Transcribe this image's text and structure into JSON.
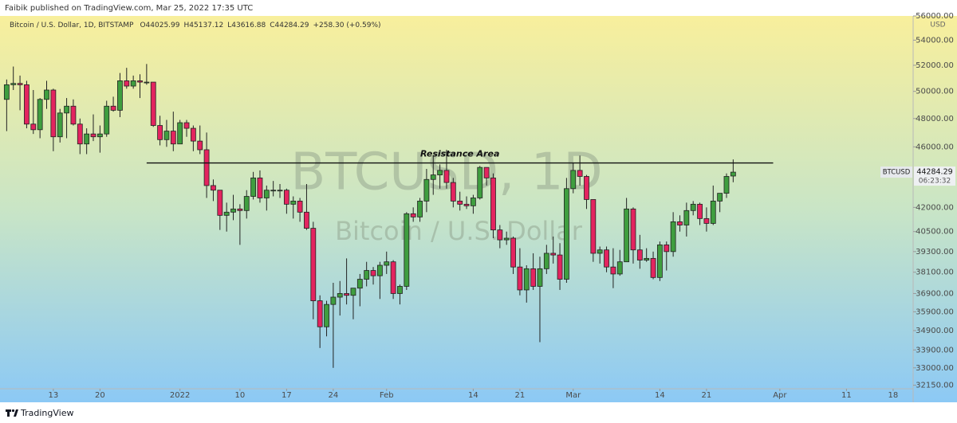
{
  "header": "Faibik published on TradingView.com, Mar 25, 2022 17:35 UTC",
  "footer": {
    "brand": "TradingView"
  },
  "chart_data": {
    "type": "candlestick",
    "symbol_line": "Bitcoin / U.S. Dollar, 1D, BITSTAMP",
    "ohlc_prefixes": [
      "O",
      "H",
      "L",
      "C"
    ],
    "change_label": "+258.30 (+0.59%)",
    "watermark": [
      "BTCUSD, 1D",
      "Bitcoin / U.S. Dollar"
    ],
    "currency": "USD",
    "price_tag_symbol": "BTCUSD",
    "countdown": "06:23:32",
    "up_color": "#3f9e3f",
    "down_color": "#e3245f",
    "log_scale": true,
    "grid": false,
    "x": [
      "2021-12-06",
      "2021-12-07",
      "2021-12-08",
      "2021-12-09",
      "2021-12-10",
      "2021-12-11",
      "2021-12-12",
      "2021-12-13",
      "2021-12-14",
      "2021-12-15",
      "2021-12-16",
      "2021-12-17",
      "2021-12-18",
      "2021-12-19",
      "2021-12-20",
      "2021-12-21",
      "2021-12-22",
      "2021-12-23",
      "2021-12-24",
      "2021-12-25",
      "2021-12-26",
      "2021-12-27",
      "2021-12-28",
      "2021-12-29",
      "2021-12-30",
      "2021-12-31",
      "2022-01-01",
      "2022-01-02",
      "2022-01-03",
      "2022-01-04",
      "2022-01-05",
      "2022-01-06",
      "2022-01-07",
      "2022-01-08",
      "2022-01-09",
      "2022-01-10",
      "2022-01-11",
      "2022-01-12",
      "2022-01-13",
      "2022-01-14",
      "2022-01-15",
      "2022-01-16",
      "2022-01-17",
      "2022-01-18",
      "2022-01-19",
      "2022-01-20",
      "2022-01-21",
      "2022-01-22",
      "2022-01-23",
      "2022-01-24",
      "2022-01-25",
      "2022-01-26",
      "2022-01-27",
      "2022-01-28",
      "2022-01-29",
      "2022-01-30",
      "2022-01-31",
      "2022-02-01",
      "2022-02-02",
      "2022-02-03",
      "2022-02-04",
      "2022-02-05",
      "2022-02-06",
      "2022-02-07",
      "2022-02-08",
      "2022-02-09",
      "2022-02-10",
      "2022-02-11",
      "2022-02-12",
      "2022-02-13",
      "2022-02-14",
      "2022-02-15",
      "2022-02-16",
      "2022-02-17",
      "2022-02-18",
      "2022-02-19",
      "2022-02-20",
      "2022-02-21",
      "2022-02-22",
      "2022-02-23",
      "2022-02-24",
      "2022-02-25",
      "2022-02-26",
      "2022-02-27",
      "2022-02-28",
      "2022-03-01",
      "2022-03-02",
      "2022-03-03",
      "2022-03-04",
      "2022-03-05",
      "2022-03-06",
      "2022-03-07",
      "2022-03-08",
      "2022-03-09",
      "2022-03-10",
      "2022-03-11",
      "2022-03-12",
      "2022-03-13",
      "2022-03-14",
      "2022-03-15",
      "2022-03-16",
      "2022-03-17",
      "2022-03-18",
      "2022-03-19",
      "2022-03-20",
      "2022-03-21",
      "2022-03-22",
      "2022-03-23",
      "2022-03-24",
      "2022-03-25"
    ],
    "open": [
      49400,
      50500,
      50600,
      50500,
      47600,
      47200,
      49400,
      50100,
      46700,
      48400,
      48900,
      47600,
      46200,
      46900,
      46700,
      46900,
      48900,
      48600,
      50800,
      50400,
      50800,
      50700,
      50700,
      47500,
      46500,
      47100,
      46200,
      47700,
      47300,
      46400,
      45800,
      43400,
      43100,
      41500,
      41700,
      41900,
      41800,
      42700,
      43900,
      42600,
      43100,
      43100,
      43100,
      42200,
      42400,
      41700,
      40700,
      36500,
      35100,
      36300,
      36700,
      36900,
      36800,
      37200,
      37700,
      38200,
      37900,
      38500,
      38700,
      36900,
      37300,
      41600,
      41400,
      42400,
      43800,
      44100,
      44400,
      43600,
      42400,
      42200,
      42100,
      42600,
      44600,
      43900,
      40600,
      40000,
      40100,
      38400,
      37100,
      38300,
      37300,
      38300,
      39200,
      39100,
      37700,
      43200,
      44400,
      44000,
      42500,
      39200,
      39400,
      38400,
      38000,
      38700,
      41900,
      39400,
      38800,
      38900,
      37800,
      39700,
      39300,
      41100,
      40900,
      41800,
      42200,
      41300,
      41000,
      42400,
      42900,
      44025.99
    ],
    "high": [
      50900,
      51900,
      51200,
      50800,
      50100,
      49500,
      50800,
      50200,
      48700,
      49500,
      49400,
      48000,
      47300,
      48300,
      47500,
      49300,
      49600,
      51400,
      51800,
      51200,
      51300,
      52100,
      50700,
      48200,
      47900,
      48500,
      47900,
      47900,
      47500,
      47500,
      47000,
      43800,
      43100,
      42300,
      42800,
      42200,
      43100,
      44300,
      44400,
      43400,
      43700,
      43500,
      43200,
      42700,
      42600,
      43500,
      41100,
      36800,
      36500,
      37500,
      37600,
      38900,
      37200,
      38000,
      38700,
      38400,
      38700,
      39300,
      38800,
      37400,
      41700,
      42000,
      42600,
      44500,
      45400,
      44800,
      45800,
      43900,
      43000,
      42700,
      42800,
      44700,
      44600,
      44200,
      40900,
      40500,
      40200,
      39500,
      38500,
      39200,
      39000,
      39700,
      40200,
      39800,
      43900,
      44900,
      45400,
      44100,
      42500,
      39600,
      39600,
      39500,
      39400,
      42600,
      42000,
      40300,
      39500,
      39300,
      39900,
      39900,
      41700,
      41500,
      42300,
      42400,
      42300,
      42000,
      43400,
      42800,
      44200,
      45137.12
    ],
    "low": [
      47100,
      50100,
      48600,
      47300,
      46900,
      46600,
      48700,
      45700,
      46300,
      46600,
      47500,
      45500,
      45500,
      46400,
      45600,
      46700,
      48500,
      48100,
      50200,
      50200,
      49500,
      50500,
      47400,
      46100,
      46000,
      45700,
      46200,
      46700,
      45700,
      45500,
      42600,
      42400,
      40600,
      40500,
      41200,
      39700,
      41300,
      42500,
      42300,
      41800,
      42700,
      42600,
      41600,
      41300,
      41100,
      40600,
      35500,
      34000,
      34600,
      33000,
      35700,
      36300,
      35500,
      36200,
      37300,
      37400,
      36600,
      38000,
      36600,
      36300,
      37100,
      41100,
      41100,
      41700,
      42800,
      43200,
      43200,
      42000,
      41800,
      41900,
      41600,
      42500,
      43400,
      40100,
      39500,
      39700,
      38000,
      36800,
      36400,
      37100,
      34300,
      38000,
      38600,
      37100,
      37500,
      42900,
      43400,
      41900,
      38700,
      38600,
      38100,
      37200,
      37900,
      38700,
      38600,
      38300,
      38700,
      37700,
      37600,
      38200,
      39000,
      40500,
      40200,
      41500,
      40900,
      40500,
      40900,
      41700,
      42600,
      43616.88
    ],
    "close": [
      50500,
      50600,
      50500,
      47600,
      47200,
      49400,
      50100,
      46700,
      48400,
      48900,
      47600,
      46200,
      46900,
      46700,
      46900,
      48900,
      48600,
      50800,
      50400,
      50800,
      50700,
      50700,
      47500,
      46500,
      47100,
      46200,
      47700,
      47300,
      46400,
      45800,
      43400,
      43100,
      41500,
      41700,
      41900,
      41800,
      42700,
      43900,
      42600,
      43100,
      43100,
      43100,
      42200,
      42400,
      41700,
      40700,
      36500,
      35100,
      36300,
      36700,
      36900,
      36800,
      37200,
      37700,
      38200,
      37900,
      38500,
      38700,
      36900,
      37300,
      41600,
      41400,
      42400,
      43800,
      44100,
      44400,
      43600,
      42400,
      42200,
      42100,
      42600,
      44600,
      43900,
      40600,
      40000,
      40100,
      38400,
      37100,
      38300,
      37300,
      38300,
      39200,
      39100,
      37700,
      43200,
      44400,
      44000,
      42500,
      39200,
      39400,
      38400,
      38000,
      38700,
      41900,
      39400,
      38800,
      38900,
      37800,
      39700,
      39300,
      41100,
      40900,
      41800,
      42200,
      41300,
      41000,
      42400,
      42900,
      44000,
      44284.29
    ],
    "xlim": [
      "2021-12-05",
      "2022-04-21"
    ],
    "xticks": [
      {
        "value": "2021-12-13",
        "label": "13"
      },
      {
        "value": "2021-12-20",
        "label": "20"
      },
      {
        "value": "2022-01-01",
        "label": "2022"
      },
      {
        "value": "2022-01-10",
        "label": "10"
      },
      {
        "value": "2022-01-17",
        "label": "17"
      },
      {
        "value": "2022-01-24",
        "label": "24"
      },
      {
        "value": "2022-02-01",
        "label": "Feb"
      },
      {
        "value": "2022-02-14",
        "label": "14"
      },
      {
        "value": "2022-02-21",
        "label": "21"
      },
      {
        "value": "2022-03-01",
        "label": "Mar"
      },
      {
        "value": "2022-03-14",
        "label": "14"
      },
      {
        "value": "2022-03-21",
        "label": "21"
      },
      {
        "value": "2022-04-01",
        "label": "Apr"
      },
      {
        "value": "2022-04-11",
        "label": "11"
      },
      {
        "value": "2022-04-18",
        "label": "18"
      }
    ],
    "ylim": [
      31980,
      56270
    ],
    "yticks": [
      {
        "value": 56000,
        "label": "56000.00"
      },
      {
        "value": 54000,
        "label": "54000.00"
      },
      {
        "value": 52000,
        "label": "52000.00"
      },
      {
        "value": 50000,
        "label": "50000.00"
      },
      {
        "value": 48000,
        "label": "48000.00"
      },
      {
        "value": 46000,
        "label": "46000.00"
      },
      {
        "value": 42000,
        "label": "42000.00"
      },
      {
        "value": 40500,
        "label": "40500.00"
      },
      {
        "value": 39300,
        "label": "39300.00"
      },
      {
        "value": 38100,
        "label": "38100.00"
      },
      {
        "value": 36900,
        "label": "36900.00"
      },
      {
        "value": 35900,
        "label": "35900.00"
      },
      {
        "value": 34900,
        "label": "34900.00"
      },
      {
        "value": 33900,
        "label": "33900.00"
      },
      {
        "value": 33000,
        "label": "33000.00"
      },
      {
        "value": 32150,
        "label": "32150.00"
      }
    ],
    "resistance": {
      "label": "Resistance Area",
      "value": 44900,
      "x": [
        "2021-12-27",
        "2022-03-31"
      ]
    }
  }
}
